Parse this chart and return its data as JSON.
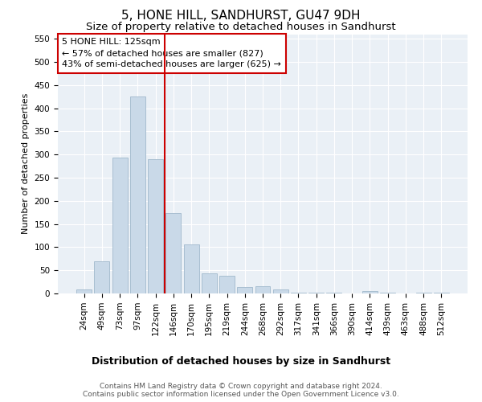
{
  "title": "5, HONE HILL, SANDHURST, GU47 9DH",
  "subtitle": "Size of property relative to detached houses in Sandhurst",
  "xlabel": "Distribution of detached houses by size in Sandhurst",
  "ylabel": "Number of detached properties",
  "categories": [
    "24sqm",
    "49sqm",
    "73sqm",
    "97sqm",
    "122sqm",
    "146sqm",
    "170sqm",
    "195sqm",
    "219sqm",
    "244sqm",
    "268sqm",
    "292sqm",
    "317sqm",
    "341sqm",
    "366sqm",
    "390sqm",
    "414sqm",
    "439sqm",
    "463sqm",
    "488sqm",
    "512sqm"
  ],
  "values": [
    8,
    70,
    293,
    425,
    290,
    173,
    106,
    43,
    38,
    14,
    16,
    8,
    2,
    1,
    1,
    0,
    5,
    1,
    0,
    1,
    2
  ],
  "bar_color": "#c9d9e8",
  "bar_edge_color": "#a0b8cc",
  "background_color": "#eaf0f6",
  "vline_x": 4.5,
  "vline_color": "#cc0000",
  "annotation_text": "5 HONE HILL: 125sqm\n← 57% of detached houses are smaller (827)\n43% of semi-detached houses are larger (625) →",
  "annotation_box_color": "#ffffff",
  "annotation_box_edge": "#cc0000",
  "ylim": [
    0,
    560
  ],
  "yticks": [
    0,
    50,
    100,
    150,
    200,
    250,
    300,
    350,
    400,
    450,
    500,
    550
  ],
  "footer1": "Contains HM Land Registry data © Crown copyright and database right 2024.",
  "footer2": "Contains public sector information licensed under the Open Government Licence v3.0.",
  "title_fontsize": 11,
  "subtitle_fontsize": 9.5,
  "xlabel_fontsize": 9,
  "ylabel_fontsize": 8,
  "tick_fontsize": 7.5,
  "annot_fontsize": 8,
  "footer_fontsize": 6.5
}
